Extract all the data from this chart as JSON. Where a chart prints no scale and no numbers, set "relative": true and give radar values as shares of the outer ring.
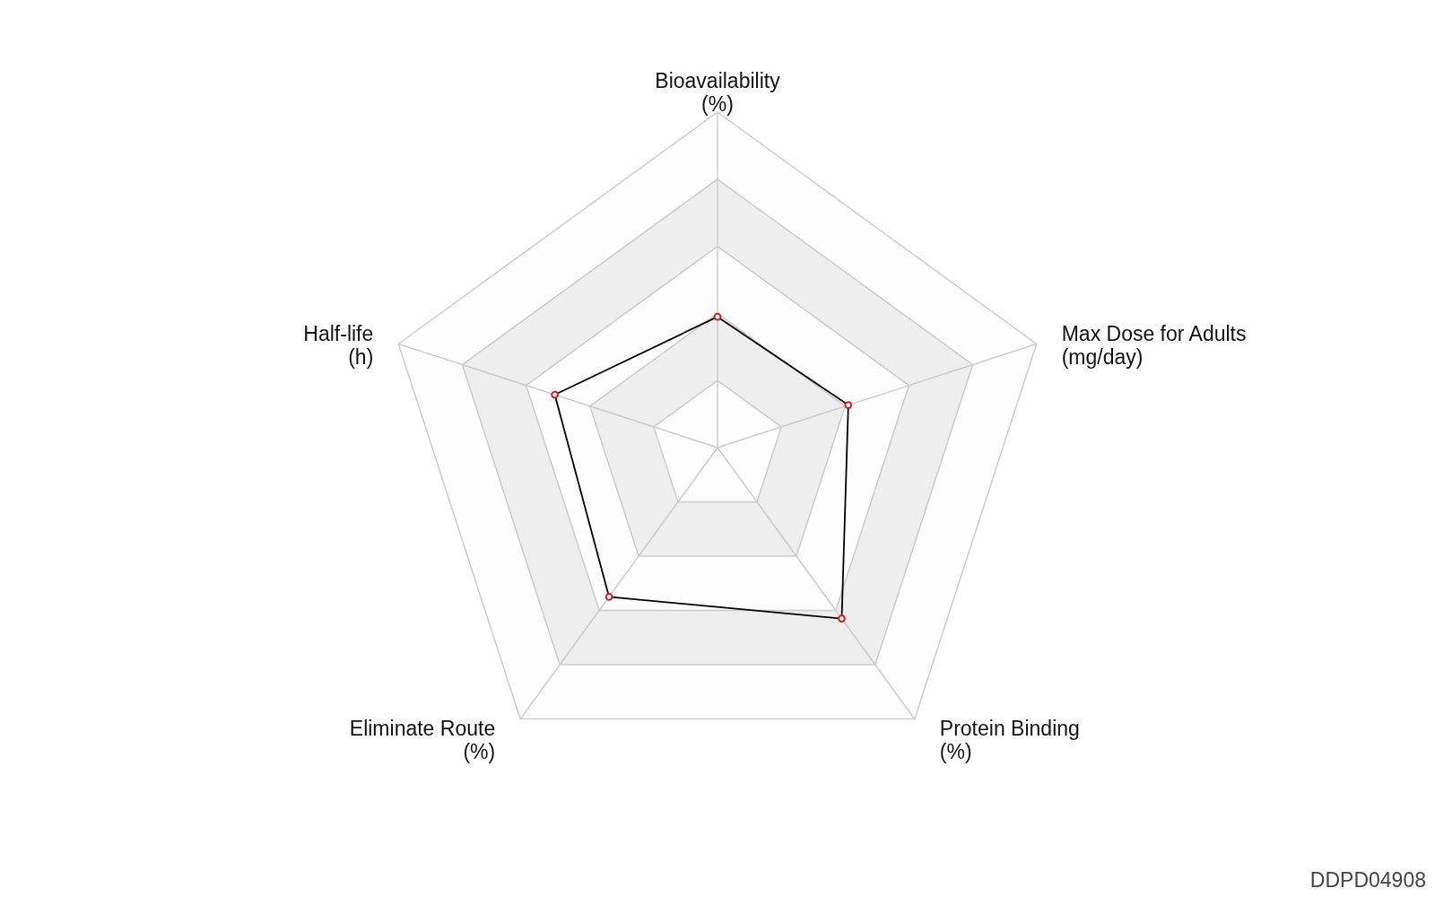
{
  "chart_data": {
    "type": "radar",
    "relative": true,
    "grid": true,
    "marker": "circle",
    "categories": [
      "Bioavailability\n(%)",
      "Max Dose for Adults\n(mg/day)",
      "Protein Binding\n(%)",
      "Eliminate Route\n(%)",
      "Half-life\n(h)"
    ],
    "series": [
      {
        "color": "#000000",
        "values": [
          0.39,
          0.41,
          0.63,
          0.55,
          0.51
        ]
      }
    ],
    "annotations": [
      "DDPD04908"
    ]
  }
}
